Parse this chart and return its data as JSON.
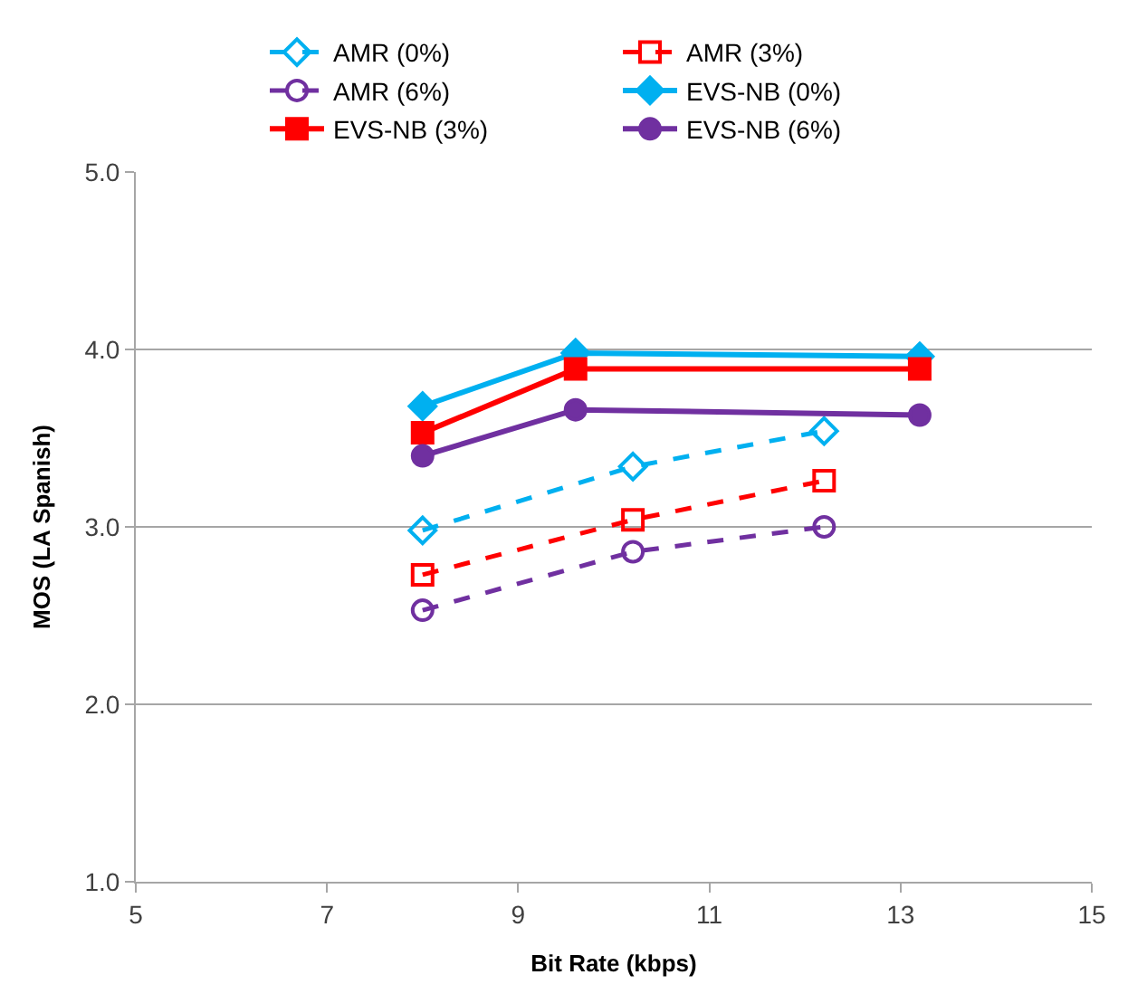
{
  "chart_data": {
    "type": "line",
    "xlabel": "Bit Rate (kbps)",
    "ylabel": "MOS (LA Spanish)",
    "xlim": [
      5,
      15
    ],
    "xticks": [
      5,
      7,
      9,
      11,
      13,
      15
    ],
    "ylim": [
      1,
      5
    ],
    "yticks": [
      {
        "value": 1,
        "label": "1.0"
      },
      {
        "value": 2,
        "label": "2.0"
      },
      {
        "value": 3,
        "label": "3.0"
      },
      {
        "value": 4,
        "label": "4.0"
      },
      {
        "value": 5,
        "label": "5.0"
      }
    ],
    "grid": "y",
    "legend": "top",
    "series": [
      {
        "name": "AMR (0%)",
        "color": "#00b0f0",
        "x": [
          8,
          10.2,
          12.2
        ],
        "values": [
          2.98,
          3.34,
          3.54
        ],
        "marker": "diamond",
        "line_style": "dashed"
      },
      {
        "name": "AMR (3%)",
        "color": "#ff0000",
        "x": [
          8,
          10.2,
          12.2
        ],
        "values": [
          2.73,
          3.04,
          3.26
        ],
        "marker": "square",
        "line_style": "dashed"
      },
      {
        "name": "AMR (6%)",
        "color": "#7030a0",
        "x": [
          8,
          10.2,
          12.2
        ],
        "values": [
          2.53,
          2.86,
          3.0
        ],
        "marker": "circle",
        "line_style": "dashed"
      },
      {
        "name": "EVS-NB (0%)",
        "color": "#00b0f0",
        "x": [
          8,
          9.6,
          13.2
        ],
        "values": [
          3.68,
          3.98,
          3.96
        ],
        "marker": "diamond",
        "line_style": "solid"
      },
      {
        "name": "EVS-NB (3%)",
        "color": "#ff0000",
        "x": [
          8,
          9.6,
          13.2
        ],
        "values": [
          3.53,
          3.89,
          3.89
        ],
        "marker": "square",
        "line_style": "solid"
      },
      {
        "name": "EVS-NB (6%)",
        "color": "#7030a0",
        "x": [
          8,
          9.6,
          13.2
        ],
        "values": [
          3.4,
          3.66,
          3.63
        ],
        "marker": "circle",
        "line_style": "solid"
      }
    ]
  }
}
